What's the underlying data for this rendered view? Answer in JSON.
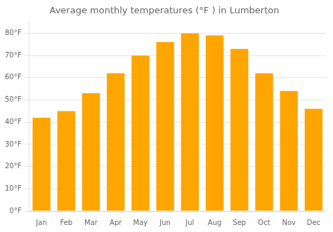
{
  "chart_data": {
    "type": "bar",
    "title": "Average monthly temperatures (°F ) in Lumberton",
    "categories": [
      "Jan",
      "Feb",
      "Mar",
      "Apr",
      "May",
      "Jun",
      "Jul",
      "Aug",
      "Sep",
      "Oct",
      "Nov",
      "Dec"
    ],
    "values": [
      42,
      45,
      53,
      62,
      70,
      76,
      80,
      79,
      73,
      62,
      54,
      46
    ],
    "color": "#FFA500",
    "ylim": [
      0,
      85
    ],
    "yticks": [
      {
        "value": 0,
        "label": "0°F"
      },
      {
        "value": 10,
        "label": "10°F"
      },
      {
        "value": 20,
        "label": "20°F"
      },
      {
        "value": 30,
        "label": "30°F"
      },
      {
        "value": 40,
        "label": "40°F"
      },
      {
        "value": 50,
        "label": "50°F"
      },
      {
        "value": 60,
        "label": "60°F"
      },
      {
        "value": 70,
        "label": "70°F"
      },
      {
        "value": 80,
        "label": "80°F"
      }
    ],
    "grid": true
  }
}
